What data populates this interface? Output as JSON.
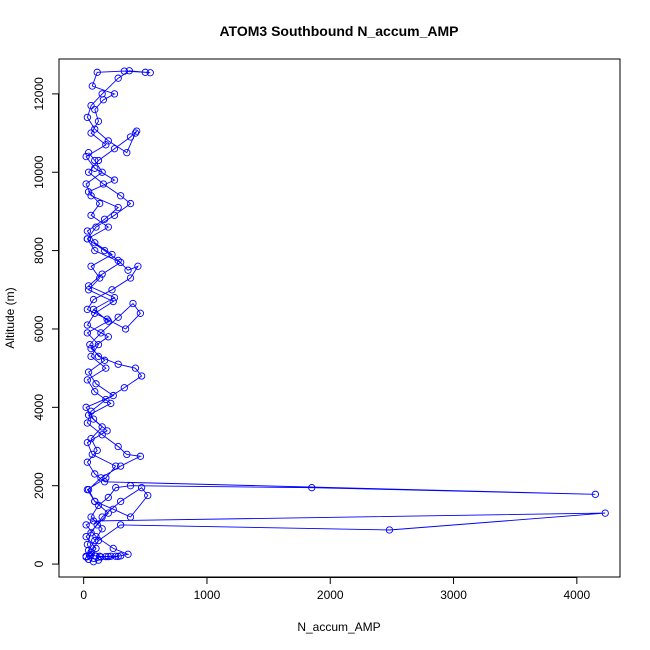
{
  "chart_data": {
    "type": "line",
    "title": "ATOM3 Southbound N_accum_AMP",
    "xlabel": "N_accum_AMP",
    "ylabel": "Altitude (m)",
    "xlim": [
      -200,
      4350
    ],
    "ylim": [
      -330,
      12890
    ],
    "x_ticks": [
      0,
      1000,
      2000,
      3000,
      4000
    ],
    "y_ticks": [
      0,
      2000,
      4000,
      6000,
      8000,
      10000,
      12000
    ],
    "marker": "open-circle",
    "color": "#0000ff",
    "series": [
      {
        "points": [
          [
            20,
            200
          ],
          [
            40,
            350
          ],
          [
            90,
            600
          ],
          [
            150,
            900
          ],
          [
            60,
            1200
          ],
          [
            120,
            1500
          ],
          [
            200,
            1700
          ],
          [
            260,
            1950
          ],
          [
            380,
            2000
          ],
          [
            1850,
            1950
          ],
          [
            4150,
            1780
          ],
          [
            170,
            2100
          ],
          [
            90,
            2300
          ],
          [
            30,
            2600
          ],
          [
            110,
            2900
          ],
          [
            60,
            3200
          ],
          [
            150,
            3500
          ],
          [
            40,
            3800
          ],
          [
            220,
            4100
          ],
          [
            90,
            4400
          ],
          [
            30,
            4700
          ],
          [
            180,
            5000
          ],
          [
            60,
            5300
          ],
          [
            120,
            5600
          ],
          [
            30,
            5900
          ],
          [
            200,
            6200
          ],
          [
            80,
            6500
          ],
          [
            250,
            6800
          ],
          [
            40,
            7100
          ],
          [
            150,
            7400
          ],
          [
            300,
            7700
          ],
          [
            90,
            8000
          ],
          [
            30,
            8300
          ],
          [
            200,
            8600
          ],
          [
            60,
            8900
          ],
          [
            130,
            9200
          ],
          [
            40,
            9500
          ],
          [
            250,
            9800
          ],
          [
            90,
            10100
          ],
          [
            20,
            10400
          ],
          [
            180,
            10700
          ],
          [
            60,
            11000
          ],
          [
            120,
            11300
          ],
          [
            90,
            11600
          ],
          [
            160,
            11850
          ],
          [
            250,
            12000
          ],
          [
            70,
            12200
          ],
          [
            110,
            12550
          ],
          [
            330,
            12580
          ],
          [
            500,
            12550
          ],
          [
            540,
            12540
          ],
          [
            370,
            12590
          ],
          [
            280,
            12400
          ],
          [
            150,
            12000
          ],
          [
            60,
            11700
          ],
          [
            30,
            11400
          ],
          [
            90,
            11100
          ],
          [
            200,
            10800
          ],
          [
            350,
            10500
          ],
          [
            420,
            11000
          ],
          [
            430,
            11050
          ],
          [
            380,
            10900
          ],
          [
            250,
            10600
          ],
          [
            120,
            10300
          ],
          [
            40,
            10000
          ],
          [
            160,
            9700
          ],
          [
            300,
            9400
          ],
          [
            380,
            9200
          ],
          [
            250,
            8900
          ],
          [
            100,
            8600
          ],
          [
            30,
            8300
          ],
          [
            170,
            8000
          ],
          [
            280,
            7750
          ],
          [
            360,
            7500
          ],
          [
            440,
            7600
          ],
          [
            380,
            7300
          ],
          [
            230,
            7000
          ],
          [
            80,
            6750
          ],
          [
            30,
            6500
          ],
          [
            190,
            6250
          ],
          [
            340,
            6000
          ],
          [
            460,
            6400
          ],
          [
            400,
            6650
          ],
          [
            280,
            6300
          ],
          [
            140,
            5900
          ],
          [
            50,
            5600
          ],
          [
            120,
            5300
          ],
          [
            280,
            5100
          ],
          [
            420,
            5000
          ],
          [
            470,
            4800
          ],
          [
            330,
            4500
          ],
          [
            180,
            4200
          ],
          [
            60,
            3900
          ],
          [
            30,
            3600
          ],
          [
            150,
            3300
          ],
          [
            280,
            3000
          ],
          [
            350,
            2800
          ],
          [
            460,
            2750
          ],
          [
            300,
            2500
          ],
          [
            140,
            2200
          ],
          [
            40,
            1900
          ],
          [
            90,
            1600
          ],
          [
            240,
            1400
          ],
          [
            380,
            1200
          ],
          [
            520,
            1750
          ],
          [
            470,
            1950
          ],
          [
            300,
            1600
          ],
          [
            150,
            1200
          ],
          [
            60,
            800
          ],
          [
            30,
            500
          ],
          [
            60,
            250
          ],
          [
            100,
            200
          ],
          [
            140,
            180
          ],
          [
            200,
            190
          ],
          [
            260,
            200
          ],
          [
            300,
            210
          ],
          [
            360,
            250
          ],
          [
            240,
            400
          ],
          [
            100,
            700
          ],
          [
            20,
            1000
          ],
          [
            80,
            1100
          ],
          [
            4230,
            1300
          ],
          [
            2480,
            870
          ],
          [
            300,
            1000
          ],
          [
            120,
            600
          ],
          [
            60,
            300
          ],
          [
            20,
            180
          ],
          [
            50,
            220
          ],
          [
            90,
            210
          ],
          [
            130,
            200
          ],
          [
            180,
            190
          ],
          [
            220,
            200
          ],
          [
            280,
            195
          ],
          [
            120,
            100
          ],
          [
            80,
            60
          ],
          [
            40,
            120
          ],
          [
            100,
            400
          ],
          [
            20,
            700
          ],
          [
            110,
            1000
          ],
          [
            200,
            1300
          ],
          [
            90,
            1600
          ],
          [
            30,
            1900
          ],
          [
            180,
            2200
          ],
          [
            260,
            2500
          ],
          [
            70,
            2800
          ],
          [
            30,
            3100
          ],
          [
            190,
            3400
          ],
          [
            80,
            3700
          ],
          [
            20,
            4000
          ],
          [
            240,
            4300
          ],
          [
            100,
            4600
          ],
          [
            40,
            4900
          ],
          [
            170,
            5200
          ],
          [
            60,
            5500
          ],
          [
            200,
            5800
          ],
          [
            30,
            6100
          ],
          [
            90,
            6400
          ],
          [
            240,
            6700
          ],
          [
            40,
            7000
          ],
          [
            130,
            7300
          ],
          [
            60,
            7600
          ],
          [
            230,
            7900
          ],
          [
            90,
            8200
          ],
          [
            30,
            8500
          ],
          [
            170,
            8800
          ],
          [
            280,
            9100
          ],
          [
            60,
            9400
          ],
          [
            20,
            9700
          ],
          [
            150,
            10000
          ],
          [
            90,
            10300
          ],
          [
            40,
            10500
          ]
        ]
      }
    ]
  }
}
